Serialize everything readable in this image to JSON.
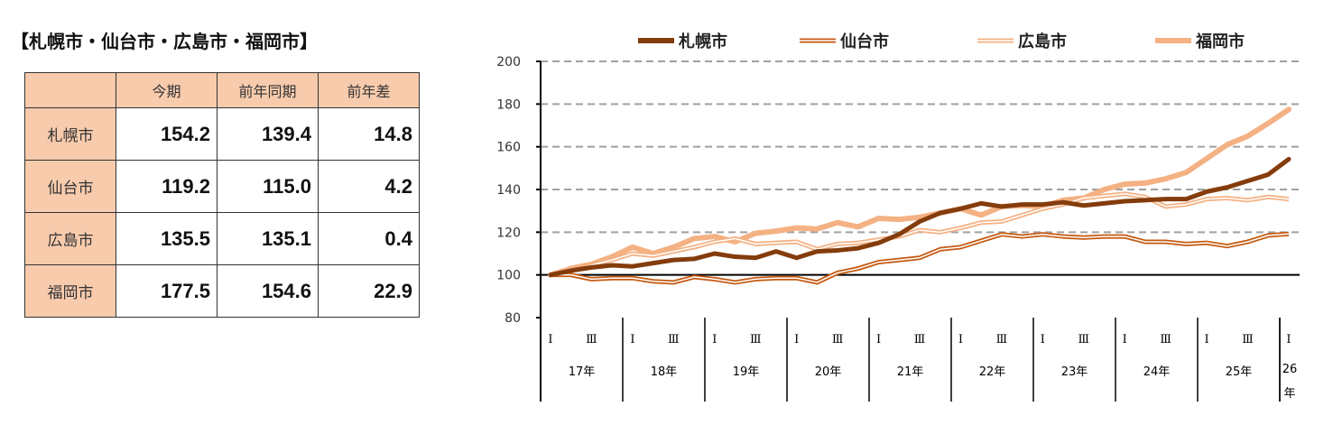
{
  "title": "【札幌市・仙台市・広島市・福岡市】",
  "table": {
    "headers": [
      "",
      "今期",
      "前年同期",
      "前年差"
    ],
    "rows": [
      {
        "city": "札幌市",
        "values": [
          "154.2",
          "139.4",
          "14.8"
        ]
      },
      {
        "city": "仙台市",
        "values": [
          "119.2",
          "115.0",
          "4.2"
        ]
      },
      {
        "city": "広島市",
        "values": [
          "135.5",
          "135.1",
          "0.4"
        ]
      },
      {
        "city": "福岡市",
        "values": [
          "177.5",
          "154.6",
          "22.9"
        ]
      }
    ]
  },
  "chart_data": {
    "type": "line",
    "ylim": [
      80,
      200
    ],
    "yticks": [
      "80",
      "100",
      "120",
      "140",
      "160",
      "180",
      "200"
    ],
    "grid": true,
    "legend_position": "top",
    "quarter_labels": [
      "Ⅰ",
      "Ⅲ"
    ],
    "years": [
      "17年",
      "18年",
      "19年",
      "20年",
      "21年",
      "22年",
      "23年",
      "24年",
      "25年",
      "26年"
    ],
    "series": [
      {
        "name": "札幌市",
        "color": "#843C0C",
        "style": "solid",
        "values": [
          100,
          102,
          103.5,
          104.5,
          104,
          105.5,
          107,
          107.5,
          110,
          108.5,
          108,
          111,
          108,
          111,
          111.5,
          112.5,
          115,
          119,
          125,
          129,
          131,
          133.5,
          132,
          133,
          133,
          134,
          132.5,
          133.5,
          134.5,
          135,
          135.5,
          135.5,
          139,
          141,
          144,
          147,
          154.2
        ]
      },
      {
        "name": "仙台市",
        "color": "#C55A11",
        "style": "double",
        "values": [
          100,
          100,
          98,
          98.5,
          98.5,
          97,
          96.5,
          99,
          98,
          96.5,
          98,
          98.5,
          98.5,
          96.5,
          101,
          103,
          106,
          107,
          108,
          112,
          113,
          116,
          119,
          118,
          119,
          118,
          117.5,
          118,
          118,
          115.5,
          115.5,
          114.5,
          115,
          113.5,
          115.5,
          118.5,
          119.2
        ]
      },
      {
        "name": "広島市",
        "color": "#F4B183",
        "style": "double",
        "values": [
          100,
          102,
          104.5,
          107,
          110,
          109,
          111,
          113,
          115.5,
          117,
          114.5,
          115,
          115.5,
          112,
          114.5,
          115,
          116.5,
          118,
          121,
          120,
          122,
          124.5,
          125,
          128,
          131,
          133,
          136,
          137,
          138,
          136.5,
          132,
          133,
          135.5,
          136,
          135,
          136.5,
          135.5
        ]
      },
      {
        "name": "福岡市",
        "color": "#F4B183",
        "style": "thick",
        "values": [
          100,
          103,
          105,
          108.5,
          113,
          110,
          113,
          117,
          118,
          115.5,
          119.5,
          120.5,
          122,
          121.5,
          124.5,
          122.5,
          126.5,
          126,
          127,
          129,
          131,
          128,
          132,
          132.5,
          132,
          135,
          136,
          140,
          142.5,
          143,
          145,
          148,
          154.5,
          161,
          165,
          171,
          177.5
        ]
      }
    ]
  }
}
